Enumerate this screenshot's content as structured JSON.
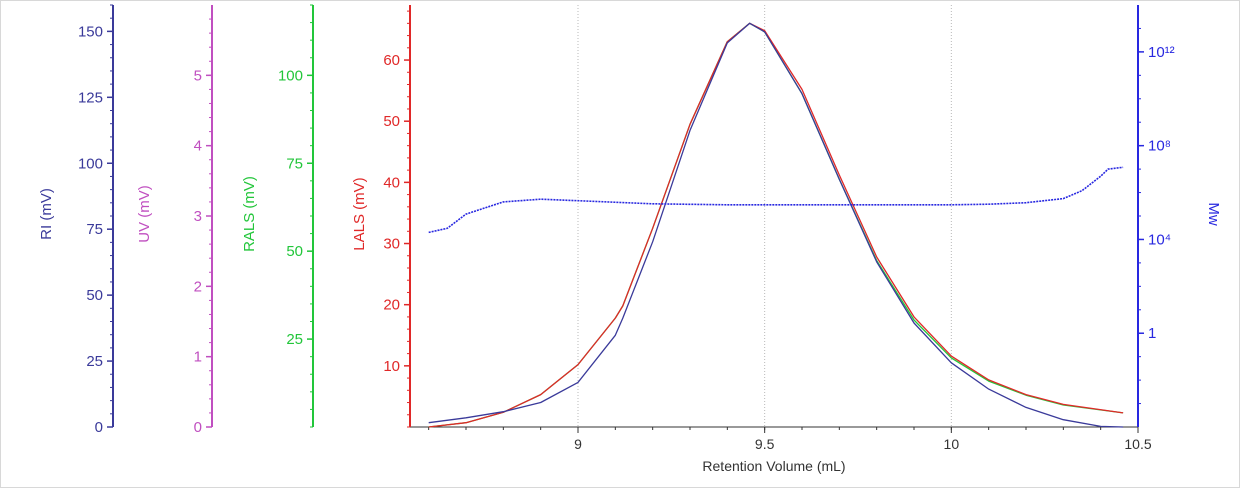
{
  "chart_data": {
    "type": "line",
    "xlabel": "Retention Volume (mL)",
    "xlim": [
      8.55,
      10.5
    ],
    "xticks": [
      "9",
      "9.5",
      "10",
      "10.5"
    ],
    "xtick_values": [
      9,
      9.5,
      10,
      10.5
    ],
    "grid": "vertical dotted",
    "colors": {
      "RI": "#3a3a9a",
      "UV": "#c04fc0",
      "RALS": "#22c63a",
      "LALS": "#e02828",
      "Mw": "#2828e0"
    },
    "axes": [
      {
        "key": "RI",
        "label": "RI (mV)",
        "lim": [
          0,
          160
        ],
        "ticks": [
          "0",
          "25",
          "50",
          "75",
          "100",
          "125",
          "150"
        ],
        "tick_values": [
          0,
          25,
          50,
          75,
          100,
          125,
          150
        ]
      },
      {
        "key": "UV",
        "label": "UV (mV)",
        "lim": [
          0,
          6
        ],
        "ticks": [
          "0",
          "1",
          "2",
          "3",
          "4",
          "5"
        ],
        "tick_values": [
          0,
          1,
          2,
          3,
          4,
          5
        ]
      },
      {
        "key": "RALS",
        "label": "RALS (mV)",
        "lim": [
          0,
          120
        ],
        "ticks": [
          "25",
          "50",
          "75",
          "100"
        ],
        "tick_values": [
          25,
          50,
          75,
          100
        ]
      },
      {
        "key": "LALS",
        "label": "LALS (mV)",
        "lim": [
          0,
          69
        ],
        "ticks": [
          "10",
          "20",
          "30",
          "40",
          "50",
          "60"
        ],
        "tick_values": [
          10,
          20,
          30,
          40,
          50,
          60
        ]
      },
      {
        "key": "Mw",
        "label": "Mw",
        "scale": "log",
        "lim": [
          0.0001,
          100000000000000.0
        ],
        "ticks": [
          "1",
          "10⁴",
          "10⁸",
          "10¹²"
        ],
        "tick_values": [
          1,
          10000,
          100000000,
          1000000000000
        ]
      }
    ],
    "series": [
      {
        "key": "RALS",
        "axis": "LALS",
        "x": [
          8.6,
          8.7,
          8.8,
          8.9,
          9.0,
          9.1,
          9.12,
          9.2,
          9.3,
          9.4,
          9.46,
          9.5,
          9.6,
          9.7,
          9.8,
          9.9,
          10.0,
          10.1,
          10.2,
          10.3,
          10.46
        ],
        "y": [
          0,
          0.7,
          2.4,
          5.3,
          10.2,
          17.8,
          19.8,
          32.5,
          49.5,
          63,
          66,
          64.6,
          54.5,
          40.5,
          27.2,
          17.5,
          11.3,
          7.5,
          5.2,
          3.6,
          2.3
        ]
      },
      {
        "key": "LALS",
        "axis": "LALS",
        "x": [
          8.6,
          8.7,
          8.8,
          8.9,
          9.0,
          9.1,
          9.12,
          9.2,
          9.3,
          9.4,
          9.46,
          9.5,
          9.6,
          9.7,
          9.8,
          9.9,
          10.0,
          10.1,
          10.2,
          10.3,
          10.46
        ],
        "y": [
          0,
          0.7,
          2.4,
          5.3,
          10.2,
          17.8,
          19.8,
          32.5,
          49.5,
          63,
          66,
          64.8,
          55.2,
          41.2,
          27.8,
          18,
          11.6,
          7.7,
          5.3,
          3.7,
          2.3
        ]
      },
      {
        "key": "RI",
        "axis": "LALS",
        "x": [
          8.6,
          8.7,
          8.8,
          8.9,
          9.0,
          9.1,
          9.12,
          9.2,
          9.3,
          9.4,
          9.46,
          9.5,
          9.6,
          9.7,
          9.8,
          9.9,
          10.0,
          10.1,
          10.2,
          10.3,
          10.4,
          10.46
        ],
        "y": [
          0.7,
          1.5,
          2.5,
          4,
          7.3,
          15,
          17.8,
          30.3,
          48.5,
          62.8,
          66,
          64.6,
          54.5,
          40.5,
          27,
          17,
          10.5,
          6.2,
          3.2,
          1.2,
          0.1,
          0
        ]
      },
      {
        "key": "Mw",
        "axis": "Mw",
        "x": [
          8.6,
          8.65,
          8.7,
          8.8,
          8.9,
          9.0,
          9.2,
          9.4,
          9.6,
          9.8,
          10.0,
          10.1,
          10.2,
          10.3,
          10.35,
          10.4,
          10.42,
          10.46
        ],
        "y": [
          20000,
          30000,
          120000,
          400000,
          520000,
          450000,
          330000,
          300000,
          300000,
          300000,
          300000,
          320000,
          370000,
          550000,
          1200000,
          5000000,
          10000000,
          12000000
        ]
      }
    ]
  }
}
